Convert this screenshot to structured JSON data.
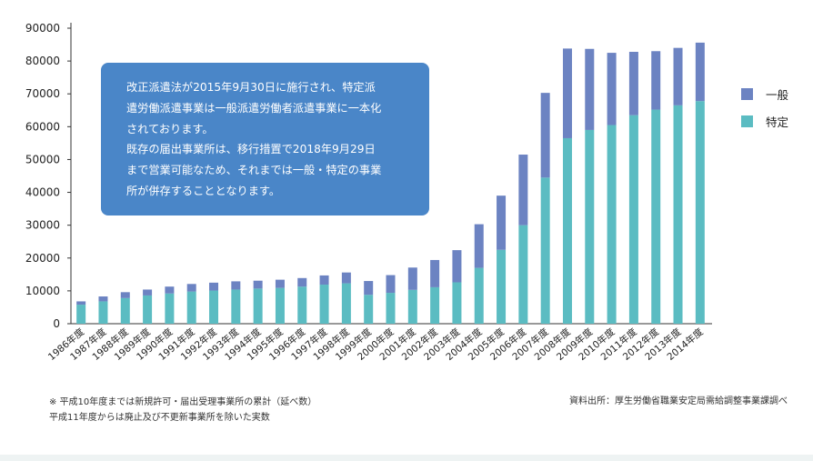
{
  "chart_data": {
    "type": "bar",
    "stacked": true,
    "categories": [
      "1986年度",
      "1987年度",
      "1988年度",
      "1989年度",
      "1990年度",
      "1991年度",
      "1992年度",
      "1993年度",
      "1994年度",
      "1995年度",
      "1996年度",
      "1997年度",
      "1998年度",
      "1999年度",
      "2000年度",
      "2001年度",
      "2002年度",
      "2003年度",
      "2004年度",
      "2005年度",
      "2006年度",
      "2007年度",
      "2008年度",
      "2009年度",
      "2010年度",
      "2011年度",
      "2012年度",
      "2013年度",
      "2014年度"
    ],
    "series": [
      {
        "name": "特定",
        "color": "#5bbcc2",
        "values": [
          5800,
          6800,
          7800,
          8600,
          9200,
          9800,
          10100,
          10400,
          10700,
          10900,
          11300,
          11900,
          12300,
          8800,
          9400,
          10300,
          11100,
          12600,
          17000,
          22500,
          30000,
          44500,
          56500,
          59000,
          60500,
          63500,
          65200,
          66500,
          67800
        ]
      },
      {
        "name": "一般",
        "color": "#6c83c2",
        "values": [
          1000,
          1500,
          1800,
          1800,
          2100,
          2300,
          2400,
          2500,
          2400,
          2500,
          2600,
          2800,
          3300,
          4200,
          5400,
          6800,
          8300,
          9800,
          13300,
          16500,
          21500,
          25800,
          27300,
          24700,
          22000,
          19300,
          17800,
          17500,
          17800
        ]
      }
    ],
    "ylim": [
      0,
      90000
    ],
    "yticks": [
      0,
      10000,
      20000,
      30000,
      40000,
      50000,
      60000,
      70000,
      80000,
      90000
    ],
    "yticklabels": [
      "0",
      "10000",
      "20000",
      "30000",
      "40000",
      "50000",
      "60000",
      "70000",
      "80000",
      "90000"
    ],
    "grid": false,
    "legend_position": "right"
  },
  "legend": {
    "general": "一般",
    "specific": "特定"
  },
  "colors": {
    "general": "#6c83c2",
    "specific": "#5bbcc2",
    "callout": "#4a86c8"
  },
  "callout": {
    "lines": [
      "改正派遣法が2015年9月30日に施行され、特定派",
      "遣労働派遣事業は一般派遣労働者派遣事業に一本化",
      "されております。",
      "既存の届出事業所は、移行措置で2018年9月29日",
      "まで営業可能なため、それまでは一般・特定の事業",
      "所が併存することとなります。"
    ]
  },
  "notes": {
    "line1": "※ 平成10年度までは新規許可・届出受理事業所の累計（延べ数）",
    "line2": "平成11年度からは廃止及び不更新事業所を除いた実数"
  },
  "source": "資料出所：厚生労働省職業安定局需給調整事業課調べ"
}
